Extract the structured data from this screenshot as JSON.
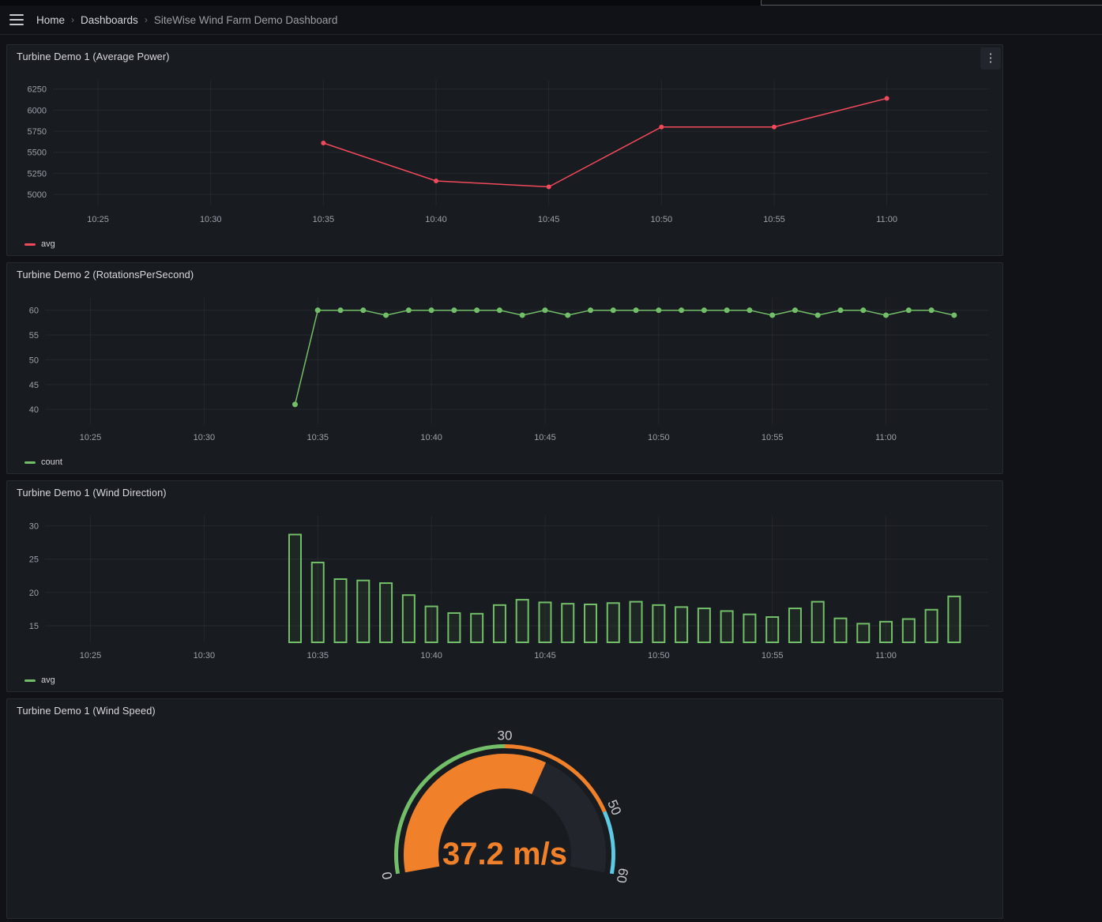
{
  "breadcrumb": {
    "separator": "›",
    "items": [
      {
        "label": "Home"
      },
      {
        "label": "Dashboards"
      },
      {
        "label": "SiteWise Wind Farm Demo Dashboard"
      }
    ]
  },
  "icons": {
    "kebab": "⋮",
    "hamburger": "menu-icon"
  },
  "colors": {
    "page_bg": "#111217",
    "panel_bg": "#181B1F",
    "red": "#F2495C",
    "green": "#73BF69",
    "orange": "#F0802A",
    "cyan": "#5EC9E3",
    "axis_text": "#9da0a8",
    "grid_line": "rgba(204,204,220,0.07)"
  },
  "panels": [
    {
      "title": "Turbine Demo 1 (Average Power)",
      "legend": "avg",
      "legend_color": "#F2495C"
    },
    {
      "title": "Turbine Demo 2 (RotationsPerSecond)",
      "legend": "count",
      "legend_color": "#73BF69"
    },
    {
      "title": "Turbine Demo 1 (Wind Direction)",
      "legend": "avg",
      "legend_color": "#73BF69"
    },
    {
      "title": "Turbine Demo 1 (Wind Speed)"
    }
  ],
  "chart_data": [
    {
      "type": "line",
      "title": "Turbine Demo 1 (Average Power)",
      "legend_position": "bottom-left",
      "grid": true,
      "marker_radius": 3,
      "x_min": "10:23",
      "x_max": "11:04.5",
      "x_ticks": [
        "10:25",
        "10:30",
        "10:35",
        "10:40",
        "10:45",
        "10:50",
        "10:55",
        "11:00"
      ],
      "y_ticks": [
        5000,
        5250,
        5500,
        5750,
        6000,
        6250
      ],
      "y_min": 4860,
      "y_max": 6360,
      "series": [
        {
          "name": "avg",
          "color": "#F2495C",
          "points": [
            [
              "10:35",
              5610
            ],
            [
              "10:40",
              5160
            ],
            [
              "10:45",
              5090
            ],
            [
              "10:50",
              5800
            ],
            [
              "10:55",
              5800
            ],
            [
              "11:00",
              6140
            ]
          ]
        }
      ]
    },
    {
      "type": "line",
      "title": "Turbine Demo 2 (RotationsPerSecond)",
      "legend_position": "bottom-left",
      "grid": true,
      "marker_radius": 3.5,
      "x_min": "10:23",
      "x_max": "11:04.5",
      "x_ticks": [
        "10:25",
        "10:30",
        "10:35",
        "10:40",
        "10:45",
        "10:50",
        "10:55",
        "11:00"
      ],
      "y_ticks": [
        40,
        45,
        50,
        55,
        60
      ],
      "y_min": 37,
      "y_max": 62.5,
      "series": [
        {
          "name": "count",
          "color": "#73BF69",
          "points": [
            [
              "10:34",
              41
            ],
            [
              "10:35",
              60
            ],
            [
              "10:36",
              60
            ],
            [
              "10:37",
              60
            ],
            [
              "10:38",
              59
            ],
            [
              "10:39",
              60
            ],
            [
              "10:40",
              60
            ],
            [
              "10:41",
              60
            ],
            [
              "10:42",
              60
            ],
            [
              "10:43",
              60
            ],
            [
              "10:44",
              59
            ],
            [
              "10:45",
              60
            ],
            [
              "10:46",
              59
            ],
            [
              "10:47",
              60
            ],
            [
              "10:48",
              60
            ],
            [
              "10:49",
              60
            ],
            [
              "10:50",
              60
            ],
            [
              "10:51",
              60
            ],
            [
              "10:52",
              60
            ],
            [
              "10:53",
              60
            ],
            [
              "10:54",
              60
            ],
            [
              "10:55",
              59
            ],
            [
              "10:56",
              60
            ],
            [
              "10:57",
              59
            ],
            [
              "10:58",
              60
            ],
            [
              "10:59",
              60
            ],
            [
              "11:00",
              59
            ],
            [
              "11:01",
              60
            ],
            [
              "11:02",
              60
            ],
            [
              "11:03",
              59
            ]
          ]
        }
      ]
    },
    {
      "type": "bar",
      "title": "Turbine Demo 1 (Wind Direction)",
      "legend_position": "bottom-left",
      "grid": true,
      "x_min": "10:23",
      "x_max": "11:04.5",
      "x_ticks": [
        "10:25",
        "10:30",
        "10:35",
        "10:40",
        "10:45",
        "10:50",
        "10:55",
        "11:00"
      ],
      "y_ticks": [
        15,
        20,
        25,
        30
      ],
      "y_min": 12.5,
      "y_max": 31.5,
      "series": [
        {
          "name": "avg",
          "color": "#73BF69",
          "fill": "rgba(115,191,105,0.08)",
          "points": [
            [
              "10:34",
              28.7
            ],
            [
              "10:35",
              24.5
            ],
            [
              "10:36",
              22
            ],
            [
              "10:37",
              21.8
            ],
            [
              "10:38",
              21.4
            ],
            [
              "10:39",
              19.6
            ],
            [
              "10:40",
              17.9
            ],
            [
              "10:41",
              16.9
            ],
            [
              "10:42",
              16.8
            ],
            [
              "10:43",
              18.1
            ],
            [
              "10:44",
              18.9
            ],
            [
              "10:45",
              18.5
            ],
            [
              "10:46",
              18.3
            ],
            [
              "10:47",
              18.2
            ],
            [
              "10:48",
              18.4
            ],
            [
              "10:49",
              18.6
            ],
            [
              "10:50",
              18.1
            ],
            [
              "10:51",
              17.8
            ],
            [
              "10:52",
              17.6
            ],
            [
              "10:53",
              17.2
            ],
            [
              "10:54",
              16.7
            ],
            [
              "10:55",
              16.3
            ],
            [
              "10:56",
              17.6
            ],
            [
              "10:57",
              18.6
            ],
            [
              "10:58",
              16.1
            ],
            [
              "10:59",
              15.3
            ],
            [
              "11:00",
              15.6
            ],
            [
              "11:01",
              16
            ],
            [
              "11:02",
              17.4
            ],
            [
              "11:03",
              19.4
            ]
          ]
        }
      ]
    },
    {
      "type": "gauge",
      "title": "Turbine Demo 1 (Wind Speed)",
      "value": 37.2,
      "unit": "m/s",
      "display_value": "37.2 m/s",
      "min": 0,
      "max": 60,
      "tick_labels": [
        0,
        30,
        50,
        60
      ],
      "value_color": "#F0802A",
      "remainder_color": "#22252B",
      "thresholds": [
        {
          "from": 0,
          "to": 30,
          "color": "#73BF69"
        },
        {
          "from": 30,
          "to": 50,
          "color": "#F0802A"
        },
        {
          "from": 50,
          "to": 60,
          "color": "#5EC9E3"
        }
      ]
    }
  ]
}
